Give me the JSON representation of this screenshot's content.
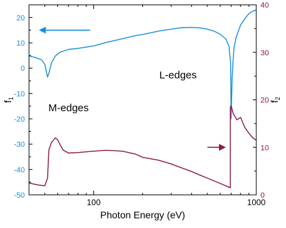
{
  "chart_data": {
    "type": "line",
    "x_scale": "log",
    "xlim": [
      40,
      1000
    ],
    "x_ticks": [
      "100",
      "1000"
    ],
    "xlabel": "Photon Energy (eV)",
    "y_left": {
      "label": "f",
      "label_sub": "1",
      "lim": [
        -50,
        25
      ],
      "ticks": [
        "20",
        "10",
        "0",
        "-10",
        "-20",
        "-30",
        "-40",
        "-50"
      ],
      "color": "#1a8fd6"
    },
    "y_right": {
      "label": "f",
      "label_sub": "2",
      "lim": [
        0,
        40
      ],
      "ticks": [
        "40",
        "30",
        "20",
        "10",
        "0"
      ],
      "color": "#8a1a4a"
    },
    "series": [
      {
        "axis": "left",
        "color": "#1a8fd6",
        "x": [
          40,
          44,
          48,
          50,
          51,
          52,
          53,
          55,
          58,
          62,
          70,
          80,
          100,
          120,
          150,
          180,
          200,
          250,
          300,
          350,
          400,
          450,
          500,
          550,
          600,
          650,
          680,
          695,
          700,
          705,
          710,
          720,
          730,
          750,
          800,
          850,
          900,
          950,
          1000
        ],
        "y": [
          4.8,
          4.2,
          3.2,
          1.5,
          -1.0,
          -3.5,
          -2.0,
          2.0,
          4.8,
          6.3,
          7.4,
          7.8,
          8.8,
          10.2,
          11.6,
          12.8,
          13.3,
          14.6,
          15.4,
          16.0,
          16.1,
          15.9,
          15.4,
          14.6,
          13.4,
          11.5,
          8.5,
          2.0,
          -20.0,
          -12.0,
          -4.0,
          3.0,
          8.0,
          12.0,
          17.0,
          19.5,
          21.5,
          22.5,
          23.0
        ]
      },
      {
        "axis": "right",
        "color": "#8a1a4a",
        "x": [
          40,
          45,
          50,
          52,
          53,
          55,
          58,
          60,
          62,
          65,
          70,
          80,
          100,
          120,
          150,
          180,
          200,
          250,
          300,
          400,
          500,
          600,
          690,
          692,
          692,
          700,
          720,
          760,
          800,
          850,
          900,
          950,
          1000
        ],
        "y": [
          2.5,
          2.1,
          1.9,
          3.5,
          9.5,
          11.0,
          12.0,
          11.6,
          10.6,
          9.4,
          8.8,
          8.9,
          9.2,
          9.4,
          9.2,
          8.6,
          7.9,
          7.3,
          6.5,
          4.9,
          3.5,
          2.4,
          1.5,
          1.5,
          18.5,
          18.8,
          17.2,
          15.8,
          16.3,
          14.2,
          13.0,
          12.0,
          11.5
        ]
      }
    ],
    "annotations": [
      {
        "text": "M-edges",
        "x": 70,
        "y_left": -17
      },
      {
        "text": "L-edges",
        "x": 330,
        "y_left": -4
      }
    ],
    "arrows": [
      {
        "axis": "left",
        "from_x": 95,
        "to_x": 46,
        "y": 15
      },
      {
        "axis": "right",
        "from_x": 500,
        "to_x": 650,
        "y": 10
      }
    ]
  }
}
